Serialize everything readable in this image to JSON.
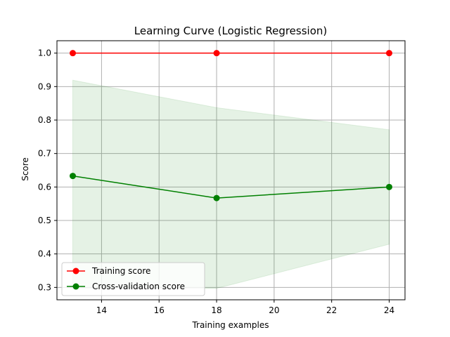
{
  "chart_data": {
    "type": "line",
    "title": "Learning Curve (Logistic Regression)",
    "xlabel": "Training examples",
    "ylabel": "Score",
    "xlim": [
      12.45,
      24.55
    ],
    "ylim": [
      0.263,
      1.037
    ],
    "xticks": [
      14,
      16,
      18,
      20,
      22,
      24
    ],
    "yticks": [
      0.3,
      0.4,
      0.5,
      0.6,
      0.7,
      0.8,
      0.9,
      1.0
    ],
    "grid": true,
    "legend_position": "lower-left",
    "x": [
      13,
      18,
      24
    ],
    "series": [
      {
        "name": "Training score",
        "color": "#ff0000",
        "values": [
          1.0,
          1.0,
          1.0
        ],
        "band_lower": [
          1.0,
          1.0,
          1.0
        ],
        "band_upper": [
          1.0,
          1.0,
          1.0
        ]
      },
      {
        "name": "Cross-validation score",
        "color": "#008000",
        "values": [
          0.633,
          0.567,
          0.6
        ],
        "band_lower": [
          0.297,
          0.297,
          0.429
        ],
        "band_upper": [
          0.919,
          0.837,
          0.771
        ]
      }
    ]
  }
}
